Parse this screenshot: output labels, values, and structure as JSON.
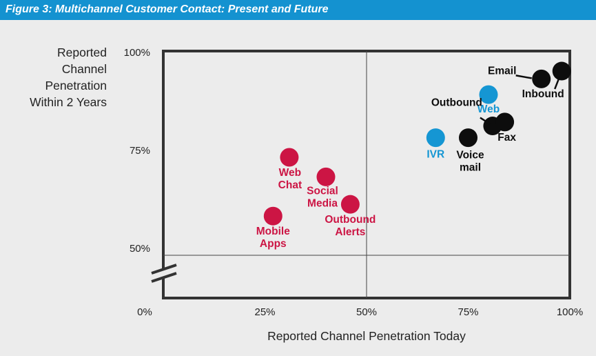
{
  "header": {
    "title": "Figure 3: Multichannel Customer Contact: Present and Future"
  },
  "colors": {
    "title_bar": "#1492d0",
    "red": "#cc1544",
    "blue": "#1596d3",
    "black": "#0d0d0d",
    "background": "#ececec",
    "frame": "#333333"
  },
  "chart_data": {
    "type": "scatter",
    "title": "Figure 3: Multichannel Customer Contact: Present and Future",
    "xlabel": "Reported Channel Penetration Today",
    "ylabel_lines": [
      "Reported",
      "Channel",
      "Penetration",
      "Within 2 Years"
    ],
    "xlim": [
      0,
      100
    ],
    "ylim": [
      37,
      100
    ],
    "axis_break": true,
    "grid": false,
    "quadrant_lines": {
      "x": 50,
      "y": 50
    },
    "x_ticks": [
      "0%",
      "25%",
      "50%",
      "75%",
      "100%"
    ],
    "x_tick_values": [
      0,
      25,
      50,
      75,
      100
    ],
    "y_ticks": [
      "50%",
      "75%",
      "100%"
    ],
    "y_tick_values": [
      50,
      75,
      100
    ],
    "points": [
      {
        "label": "Web Chat",
        "label_lines": [
          "Web",
          "Chat"
        ],
        "x": 31,
        "y": 75,
        "color": "red"
      },
      {
        "label": "Social Media",
        "label_lines": [
          "Social",
          "Media"
        ],
        "x": 40,
        "y": 70,
        "color": "red"
      },
      {
        "label": "Outbound Alerts",
        "label_lines": [
          "Outbound",
          "Alerts"
        ],
        "x": 46,
        "y": 63,
        "color": "red"
      },
      {
        "label": "Mobile Apps",
        "label_lines": [
          "Mobile",
          "Apps"
        ],
        "x": 27,
        "y": 60,
        "color": "red"
      },
      {
        "label": "IVR",
        "label_lines": [
          "IVR"
        ],
        "x": 67,
        "y": 80,
        "color": "blue"
      },
      {
        "label": "Web",
        "label_lines": [
          "Web"
        ],
        "x": 80,
        "y": 91,
        "color": "blue"
      },
      {
        "label": "Voice mail",
        "label_lines": [
          "Voice",
          "mail"
        ],
        "x": 75,
        "y": 80,
        "color": "black"
      },
      {
        "label": "Outbound",
        "label_lines": [
          "Outbound"
        ],
        "x": 81,
        "y": 83,
        "color": "black"
      },
      {
        "label": "Fax",
        "label_lines": [
          "Fax"
        ],
        "x": 84,
        "y": 84,
        "color": "black"
      },
      {
        "label": "Email",
        "label_lines": [
          "Email"
        ],
        "x": 93,
        "y": 95,
        "color": "black"
      },
      {
        "label": "Inbound",
        "label_lines": [
          "Inbound"
        ],
        "x": 98,
        "y": 97,
        "color": "black"
      }
    ]
  }
}
